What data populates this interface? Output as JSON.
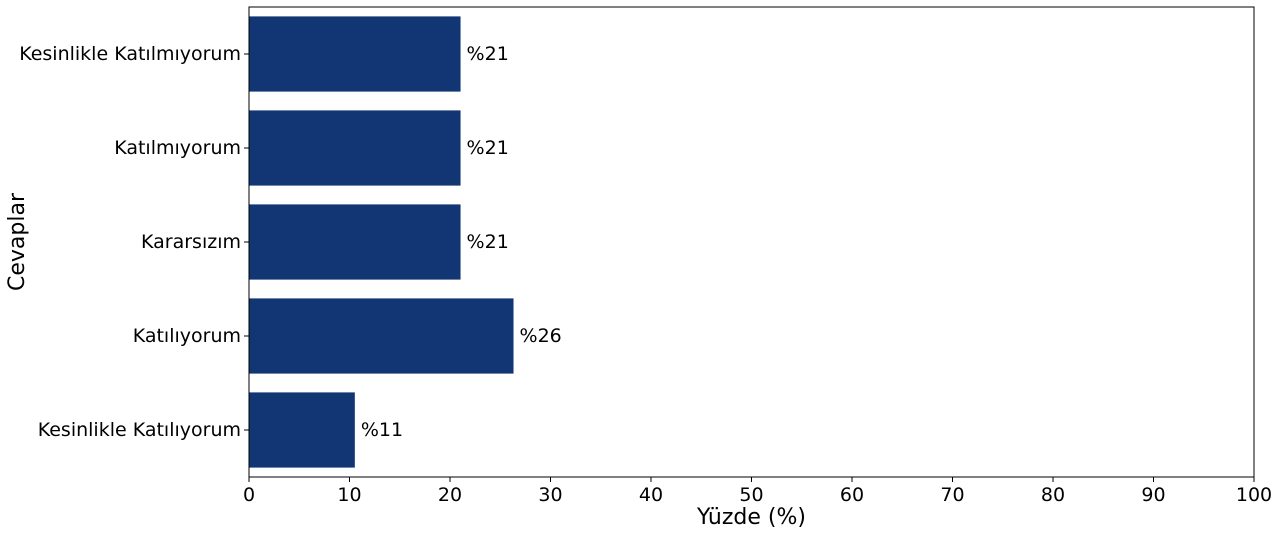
{
  "chart_data": {
    "type": "bar",
    "orientation": "horizontal",
    "categories": [
      "Kesinlikle Katılmıyorum",
      "Katılmıyorum",
      "Kararsızım",
      "Katılıyorum",
      "Kesinlikle Katılıyorum"
    ],
    "values": [
      21.05,
      21.05,
      21.05,
      26.32,
      10.53
    ],
    "value_labels": [
      "%21",
      "%21",
      "%21",
      "%26",
      "%11"
    ],
    "xlabel": "Yüzde (%)",
    "ylabel": "Cevaplar",
    "xlim": [
      0,
      100
    ],
    "xticks": [
      0,
      10,
      20,
      30,
      40,
      50,
      60,
      70,
      80,
      90,
      100
    ],
    "grid": false,
    "bar_color": "#123673"
  }
}
